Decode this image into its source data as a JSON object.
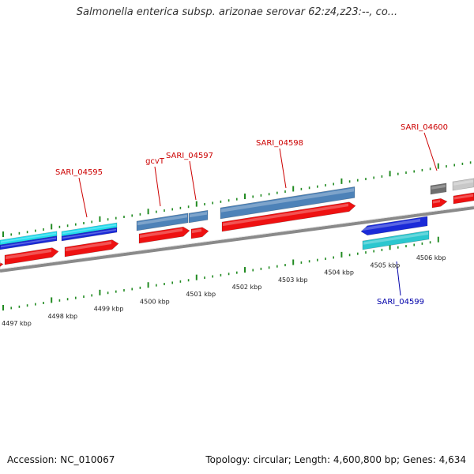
{
  "title": "Salmonella enterica subsp. arizonae serovar 62:z4,z23:--, co...",
  "footer": {
    "accession": "Accession: NC_010067",
    "summary": "Topology: circular; Length: 4,600,800 bp; Genes: 4,634"
  },
  "colors": {
    "cds_forward": "#ee1111",
    "cds_reverse": "#1a2ad8",
    "gene_steel": "#4d82b8",
    "gene_cyan": "#22dcee",
    "gene_teal": "#2bc7cf",
    "gene_gray": "#6e6e6e",
    "gene_lightgray": "#c8c8c8",
    "tick_green": "#228b22",
    "backbone": "#8a8a8a",
    "label_red": "#cc0000",
    "label_blue": "#0000aa"
  },
  "scale_labels": [
    "4497 kbp",
    "4498 kbp",
    "4499 kbp",
    "4500 kbp",
    "4501 kbp",
    "4502 kbp",
    "4503 kbp",
    "4504 kbp",
    "4505 kbp",
    "4506 kbp"
  ],
  "gene_labels": [
    {
      "text": "SARI_04595",
      "strand": "forward"
    },
    {
      "text": "gcvT",
      "strand": "forward"
    },
    {
      "text": "SARI_04597",
      "strand": "forward"
    },
    {
      "text": "SARI_04598",
      "strand": "forward"
    },
    {
      "text": "SARI_04600",
      "strand": "forward"
    },
    {
      "text": "SARI_04599",
      "strand": "reverse"
    }
  ]
}
